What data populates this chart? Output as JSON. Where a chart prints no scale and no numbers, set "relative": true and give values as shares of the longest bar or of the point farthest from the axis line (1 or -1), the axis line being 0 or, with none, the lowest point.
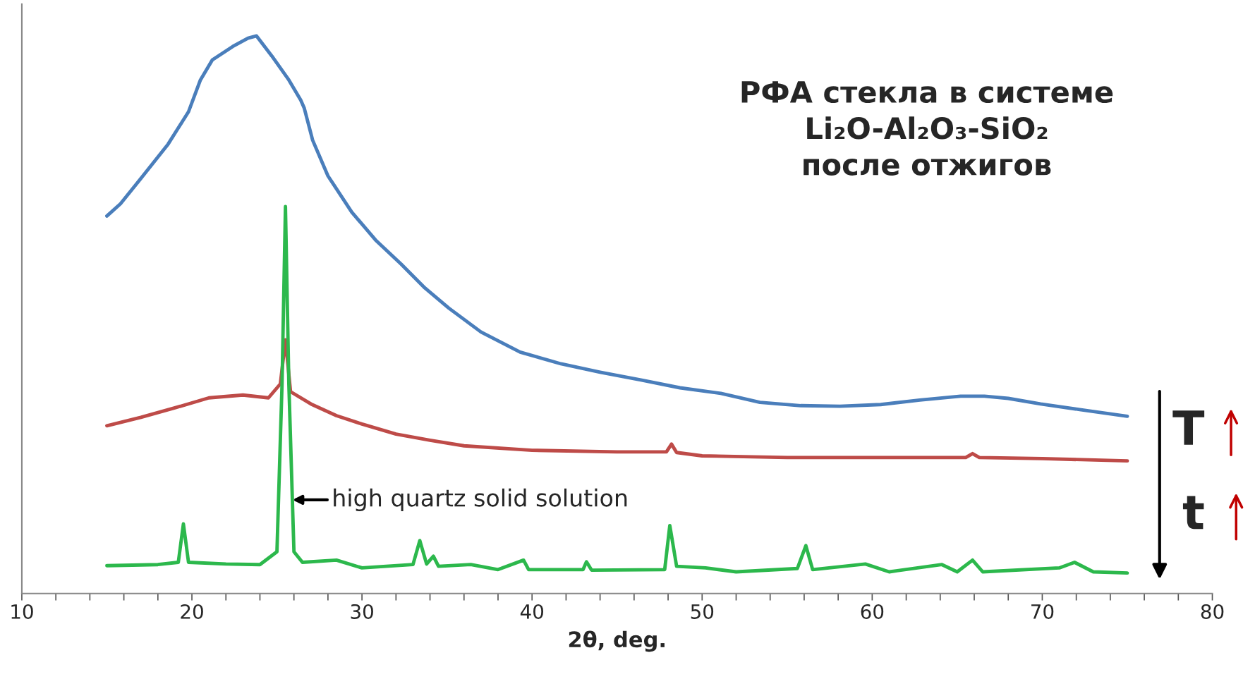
{
  "chart_data": {
    "type": "line",
    "title": "РФА стекла в системе\nLi₂O-Al₂O₃-SiO₂\nпосле отжигов",
    "xlabel": "2θ, deg.",
    "relative": true,
    "xlim": [
      10,
      80
    ],
    "xticks": [
      10,
      {
        "value": 12,
        "label": null
      },
      {
        "value": 14,
        "label": null
      },
      {
        "value": 16,
        "label": null
      },
      {
        "value": 18,
        "label": null
      },
      20,
      {
        "value": 22,
        "label": null
      },
      {
        "value": 24,
        "label": null
      },
      {
        "value": 26,
        "label": null
      },
      {
        "value": 28,
        "label": null
      },
      30,
      {
        "value": 32,
        "label": null
      },
      {
        "value": 34,
        "label": null
      },
      {
        "value": 36,
        "label": null
      },
      {
        "value": 38,
        "label": null
      },
      40,
      {
        "value": 42,
        "label": null
      },
      {
        "value": 44,
        "label": null
      },
      {
        "value": 46,
        "label": null
      },
      {
        "value": 48,
        "label": null
      },
      50,
      {
        "value": 52,
        "label": null
      },
      {
        "value": 54,
        "label": null
      },
      {
        "value": 56,
        "label": null
      },
      {
        "value": 58,
        "label": null
      },
      60,
      {
        "value": 62,
        "label": null
      },
      {
        "value": 64,
        "label": null
      },
      {
        "value": 66,
        "label": null
      },
      {
        "value": 68,
        "label": null
      },
      70,
      {
        "value": 72,
        "label": null
      },
      {
        "value": 74,
        "label": null
      },
      {
        "value": 76,
        "label": null
      },
      {
        "value": 78,
        "label": null
      },
      80
    ],
    "grid": false,
    "legend": false,
    "marker": "none",
    "line_style": "solid",
    "series": [
      {
        "color": "#4a7ebb",
        "x": [
          15.0,
          15.8,
          17.2,
          18.6,
          19.8,
          20.5,
          21.2,
          22.4,
          23.3,
          23.8,
          24.7,
          25.7,
          26.4,
          26.6,
          27.1,
          28.0,
          29.4,
          30.8,
          32.3,
          33.7,
          35.1,
          37.0,
          39.3,
          41.7,
          44.0,
          46.4,
          48.7,
          51.1,
          53.4,
          55.8,
          58.1,
          60.5,
          62.8,
          65.2,
          66.6,
          68.0,
          69.9,
          72.2,
          75.0
        ],
        "values": [
          0.677,
          0.699,
          0.752,
          0.806,
          0.864,
          0.921,
          0.957,
          0.981,
          0.996,
          1.0,
          0.964,
          0.921,
          0.885,
          0.871,
          0.813,
          0.749,
          0.684,
          0.634,
          0.591,
          0.548,
          0.512,
          0.469,
          0.433,
          0.412,
          0.397,
          0.383,
          0.369,
          0.359,
          0.343,
          0.337,
          0.336,
          0.339,
          0.347,
          0.354,
          0.354,
          0.35,
          0.34,
          0.33,
          0.318
        ]
      },
      {
        "color": "#be4b48",
        "x": [
          15.0,
          17.0,
          19.0,
          21.0,
          23.0,
          24.5,
          25.2,
          25.5,
          25.8,
          27.0,
          28.5,
          30.0,
          32.0,
          34.0,
          36.0,
          40.0,
          45.0,
          47.9,
          48.2,
          48.5,
          50.0,
          55.0,
          60.0,
          65.5,
          65.9,
          66.3,
          70.0,
          75.0
        ],
        "values": [
          0.301,
          0.316,
          0.333,
          0.351,
          0.356,
          0.351,
          0.376,
          0.455,
          0.362,
          0.34,
          0.319,
          0.304,
          0.286,
          0.275,
          0.265,
          0.257,
          0.254,
          0.254,
          0.268,
          0.253,
          0.247,
          0.244,
          0.244,
          0.244,
          0.251,
          0.244,
          0.242,
          0.238
        ]
      },
      {
        "color": "#2cb84c",
        "x": [
          15.0,
          18.0,
          19.2,
          19.5,
          19.8,
          22.0,
          24.0,
          25.0,
          25.3,
          25.5,
          25.7,
          26.0,
          26.5,
          28.5,
          30.0,
          33.0,
          33.4,
          33.8,
          34.2,
          34.5,
          36.4,
          38.0,
          39.5,
          39.8,
          43.0,
          43.2,
          43.5,
          47.8,
          48.1,
          48.5,
          50.2,
          52.0,
          55.6,
          56.1,
          56.5,
          59.6,
          61.0,
          64.1,
          65.0,
          65.9,
          66.5,
          71.0,
          71.9,
          73.0,
          75.0
        ],
        "values": [
          0.05,
          0.052,
          0.056,
          0.125,
          0.056,
          0.053,
          0.052,
          0.075,
          0.376,
          0.694,
          0.376,
          0.075,
          0.056,
          0.06,
          0.046,
          0.052,
          0.095,
          0.053,
          0.067,
          0.049,
          0.052,
          0.043,
          0.06,
          0.043,
          0.043,
          0.057,
          0.042,
          0.043,
          0.122,
          0.049,
          0.046,
          0.039,
          0.045,
          0.086,
          0.043,
          0.053,
          0.039,
          0.052,
          0.039,
          0.06,
          0.039,
          0.046,
          0.056,
          0.039,
          0.037
        ]
      }
    ],
    "annotations": [
      {
        "text": "high quartz solid solution",
        "x": 25.8,
        "y": 0.168
      },
      "T",
      "t"
    ]
  }
}
